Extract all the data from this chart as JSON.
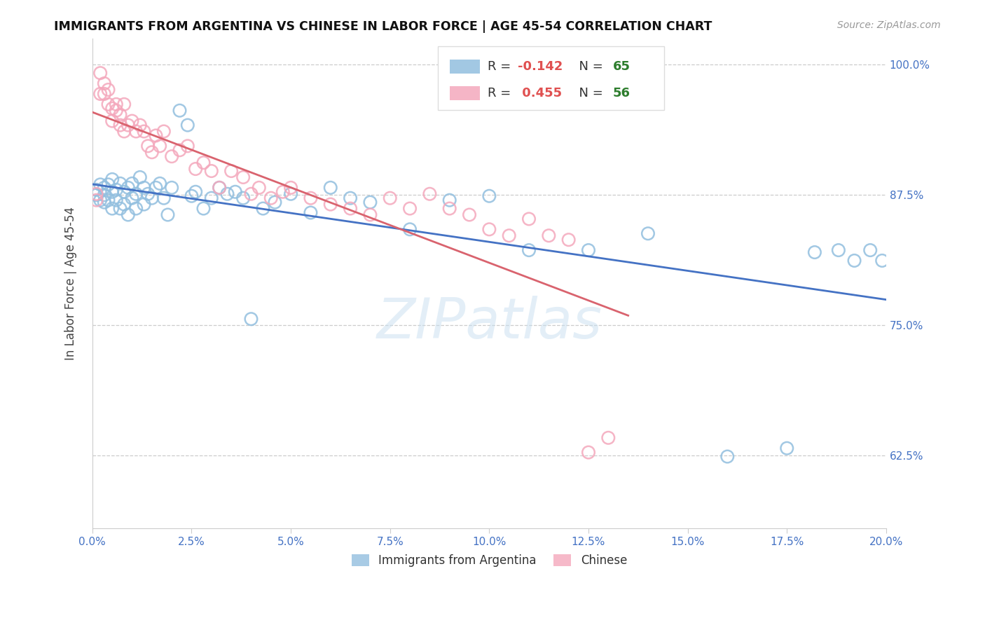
{
  "title": "IMMIGRANTS FROM ARGENTINA VS CHINESE IN LABOR FORCE | AGE 45-54 CORRELATION CHART",
  "source": "Source: ZipAtlas.com",
  "ylabel": "In Labor Force | Age 45-54",
  "ytick_vals": [
    0.625,
    0.75,
    0.875,
    1.0
  ],
  "ytick_labels": [
    "62.5%",
    "75.0%",
    "87.5%",
    "100.0%"
  ],
  "xlim": [
    0.0,
    0.2
  ],
  "ylim": [
    0.555,
    1.025
  ],
  "argentina_color": "#92bfdf",
  "chinese_color": "#f4a8bc",
  "argentina_line_color": "#4472c4",
  "chinese_line_color": "#d9636e",
  "watermark": "ZIPatlas",
  "argentina_R": -0.142,
  "argentina_N": 65,
  "chinese_R": 0.455,
  "chinese_N": 56,
  "argentina_x": [
    0.001,
    0.001,
    0.002,
    0.002,
    0.003,
    0.003,
    0.003,
    0.004,
    0.004,
    0.005,
    0.005,
    0.005,
    0.006,
    0.006,
    0.007,
    0.007,
    0.008,
    0.008,
    0.009,
    0.009,
    0.01,
    0.01,
    0.011,
    0.011,
    0.012,
    0.013,
    0.013,
    0.014,
    0.015,
    0.016,
    0.017,
    0.018,
    0.019,
    0.02,
    0.022,
    0.024,
    0.025,
    0.026,
    0.028,
    0.03,
    0.032,
    0.034,
    0.036,
    0.038,
    0.04,
    0.043,
    0.046,
    0.05,
    0.055,
    0.06,
    0.065,
    0.07,
    0.08,
    0.09,
    0.1,
    0.11,
    0.125,
    0.14,
    0.16,
    0.175,
    0.182,
    0.188,
    0.192,
    0.196,
    0.199
  ],
  "argentina_y": [
    0.88,
    0.875,
    0.885,
    0.87,
    0.882,
    0.875,
    0.868,
    0.885,
    0.87,
    0.89,
    0.878,
    0.862,
    0.88,
    0.87,
    0.886,
    0.862,
    0.878,
    0.866,
    0.882,
    0.856,
    0.886,
    0.872,
    0.876,
    0.862,
    0.892,
    0.882,
    0.866,
    0.876,
    0.872,
    0.882,
    0.886,
    0.872,
    0.856,
    0.882,
    0.956,
    0.942,
    0.874,
    0.878,
    0.862,
    0.872,
    0.882,
    0.876,
    0.878,
    0.872,
    0.756,
    0.862,
    0.868,
    0.876,
    0.858,
    0.882,
    0.872,
    0.868,
    0.842,
    0.87,
    0.874,
    0.822,
    0.822,
    0.838,
    0.624,
    0.632,
    0.82,
    0.822,
    0.812,
    0.822,
    0.812
  ],
  "chinese_x": [
    0.001,
    0.001,
    0.002,
    0.002,
    0.003,
    0.003,
    0.004,
    0.004,
    0.005,
    0.005,
    0.006,
    0.006,
    0.007,
    0.007,
    0.008,
    0.008,
    0.009,
    0.01,
    0.011,
    0.012,
    0.013,
    0.014,
    0.015,
    0.016,
    0.017,
    0.018,
    0.02,
    0.022,
    0.024,
    0.026,
    0.028,
    0.03,
    0.032,
    0.035,
    0.038,
    0.04,
    0.042,
    0.045,
    0.048,
    0.05,
    0.055,
    0.06,
    0.065,
    0.07,
    0.075,
    0.08,
    0.085,
    0.09,
    0.095,
    0.1,
    0.105,
    0.11,
    0.115,
    0.12,
    0.125,
    0.13
  ],
  "chinese_y": [
    0.876,
    0.87,
    0.992,
    0.972,
    0.982,
    0.972,
    0.962,
    0.976,
    0.958,
    0.946,
    0.962,
    0.956,
    0.942,
    0.952,
    0.936,
    0.962,
    0.942,
    0.946,
    0.936,
    0.942,
    0.936,
    0.922,
    0.916,
    0.932,
    0.922,
    0.936,
    0.912,
    0.918,
    0.922,
    0.9,
    0.906,
    0.898,
    0.882,
    0.898,
    0.892,
    0.876,
    0.882,
    0.872,
    0.878,
    0.882,
    0.872,
    0.866,
    0.862,
    0.856,
    0.872,
    0.862,
    0.876,
    0.862,
    0.856,
    0.842,
    0.836,
    0.852,
    0.836,
    0.832,
    0.628,
    0.642
  ],
  "legend_argentina_r": "-0.142",
  "legend_argentina_n": "65",
  "legend_chinese_r": "0.455",
  "legend_chinese_n": "56"
}
